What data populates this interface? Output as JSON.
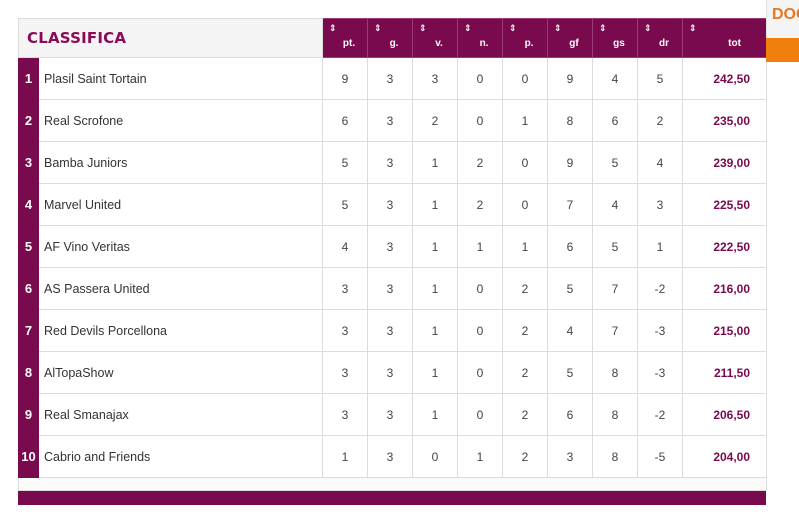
{
  "title": "CLASSIFICA",
  "columns": [
    "pt.",
    "g.",
    "v.",
    "n.",
    "p.",
    "gf",
    "gs",
    "dr",
    "tot"
  ],
  "rows": [
    {
      "rank": "1",
      "team": "Plasil Saint Tortain",
      "pt": "9",
      "g": "3",
      "v": "3",
      "n": "0",
      "p": "0",
      "gf": "9",
      "gs": "4",
      "dr": "5",
      "tot": "242,50"
    },
    {
      "rank": "2",
      "team": "Real Scrofone",
      "pt": "6",
      "g": "3",
      "v": "2",
      "n": "0",
      "p": "1",
      "gf": "8",
      "gs": "6",
      "dr": "2",
      "tot": "235,00"
    },
    {
      "rank": "3",
      "team": "Bamba Juniors",
      "pt": "5",
      "g": "3",
      "v": "1",
      "n": "2",
      "p": "0",
      "gf": "9",
      "gs": "5",
      "dr": "4",
      "tot": "239,00"
    },
    {
      "rank": "4",
      "team": "Marvel United",
      "pt": "5",
      "g": "3",
      "v": "1",
      "n": "2",
      "p": "0",
      "gf": "7",
      "gs": "4",
      "dr": "3",
      "tot": "225,50"
    },
    {
      "rank": "5",
      "team": "AF Vino Veritas",
      "pt": "4",
      "g": "3",
      "v": "1",
      "n": "1",
      "p": "1",
      "gf": "6",
      "gs": "5",
      "dr": "1",
      "tot": "222,50"
    },
    {
      "rank": "6",
      "team": "AS Passera United",
      "pt": "3",
      "g": "3",
      "v": "1",
      "n": "0",
      "p": "2",
      "gf": "5",
      "gs": "7",
      "dr": "-2",
      "tot": "216,00"
    },
    {
      "rank": "7",
      "team": "Red Devils Porcellona",
      "pt": "3",
      "g": "3",
      "v": "1",
      "n": "0",
      "p": "2",
      "gf": "4",
      "gs": "7",
      "dr": "-3",
      "tot": "215,00"
    },
    {
      "rank": "8",
      "team": "AlTopaShow",
      "pt": "3",
      "g": "3",
      "v": "1",
      "n": "0",
      "p": "2",
      "gf": "5",
      "gs": "8",
      "dr": "-3",
      "tot": "211,50"
    },
    {
      "rank": "9",
      "team": "Real Smanajax",
      "pt": "3",
      "g": "3",
      "v": "1",
      "n": "0",
      "p": "2",
      "gf": "6",
      "gs": "8",
      "dr": "-2",
      "tot": "206,50"
    },
    {
      "rank": "10",
      "team": "Cabrio and Friends",
      "pt": "1",
      "g": "3",
      "v": "0",
      "n": "1",
      "p": "2",
      "gf": "3",
      "gs": "8",
      "dr": "-5",
      "tot": "204,00"
    }
  ],
  "side_tab": "DOC",
  "sort_icon": "⇕",
  "colors": {
    "accent": "#7a0a4e",
    "orange": "#f07f0e",
    "header_bg": "#f4f4f4"
  }
}
